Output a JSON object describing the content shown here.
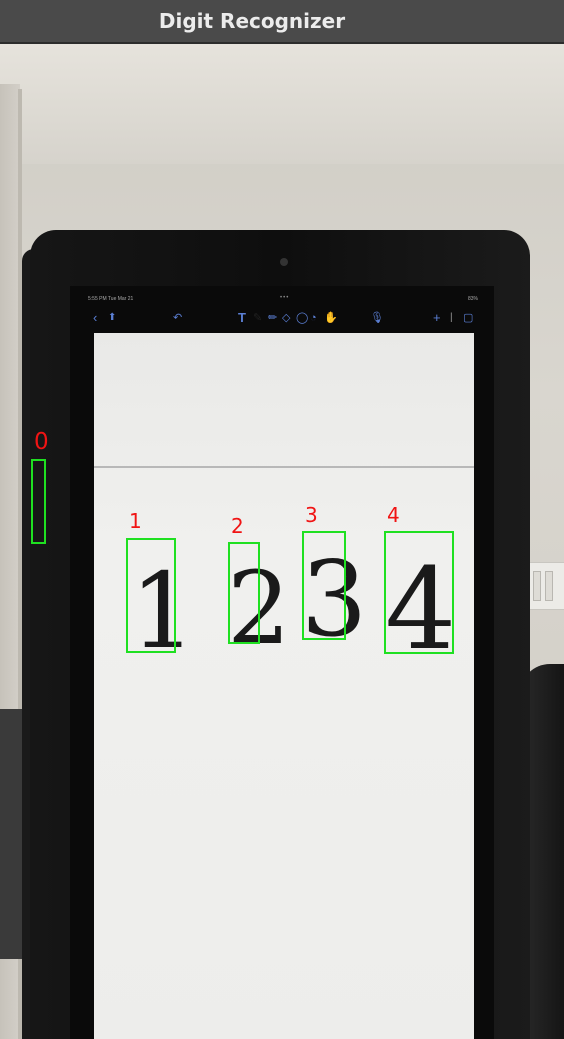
{
  "window": {
    "title": "Digit Recognizer"
  },
  "colors": {
    "box": "#1fe021",
    "label": "#f01414",
    "title_bar": "#4a4a4a"
  },
  "tablet": {
    "status_time": "5:55 PM  Tue Mar 21",
    "status_dots": "•••",
    "status_battery": "83%",
    "toolbar_icons": [
      "back-icon",
      "share-icon",
      "undo-icon",
      "text-tool-icon",
      "pen-icon",
      "pencil-icon",
      "eraser-icon",
      "lasso-icon",
      "shapes-icon",
      "microphone-icon",
      "add-icon",
      "pages-icon"
    ]
  },
  "handwriting": [
    "1",
    "2",
    "3",
    "4"
  ],
  "detections": [
    {
      "label": "0"
    },
    {
      "label": "1"
    },
    {
      "label": "2"
    },
    {
      "label": "3"
    },
    {
      "label": "4"
    }
  ]
}
